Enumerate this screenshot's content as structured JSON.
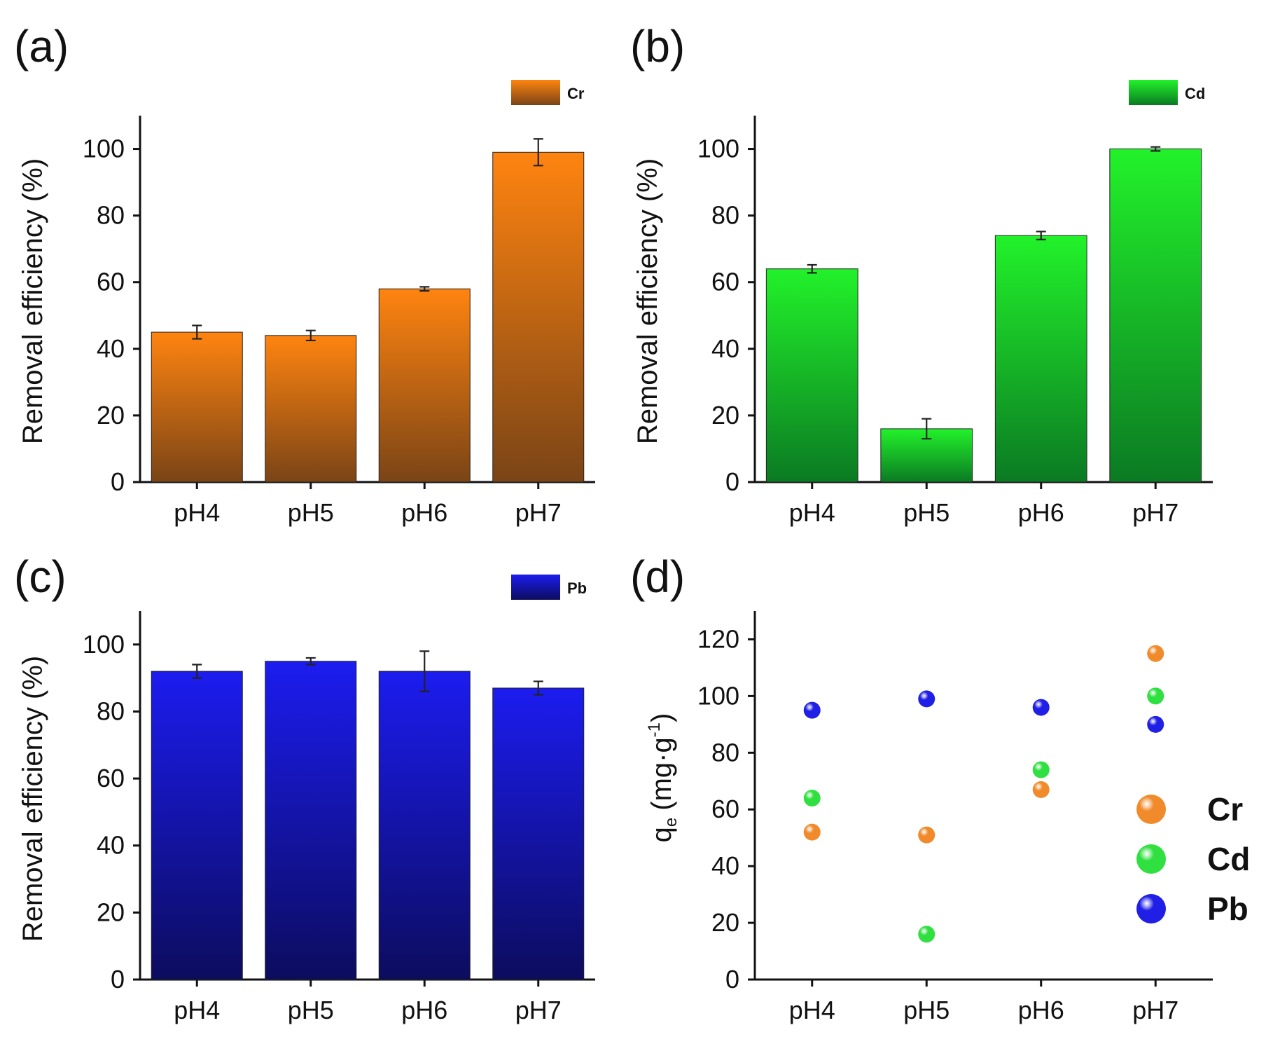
{
  "chart_data": [
    {
      "panel": "(a)",
      "type": "bar",
      "categories": [
        "pH4",
        "pH5",
        "pH6",
        "pH7"
      ],
      "series": [
        {
          "name": "Cr",
          "values": [
            45,
            44,
            58,
            99
          ],
          "errors": [
            2,
            1.5,
            0.6,
            4
          ]
        }
      ],
      "ylabel": "Removal efficiency (%)",
      "ylim": [
        0,
        110
      ],
      "yticks": [
        0,
        20,
        40,
        60,
        80,
        100
      ],
      "colors": {
        "top": "#ff8410",
        "bottom": "#7a4416"
      },
      "legend": "top-right"
    },
    {
      "panel": "(b)",
      "type": "bar",
      "categories": [
        "pH4",
        "pH5",
        "pH6",
        "pH7"
      ],
      "series": [
        {
          "name": "Cd",
          "values": [
            64,
            16,
            74,
            100
          ],
          "errors": [
            1.2,
            3,
            1.2,
            0.6
          ]
        }
      ],
      "ylabel": "Removal efficiency (%)",
      "ylim": [
        0,
        110
      ],
      "yticks": [
        0,
        20,
        40,
        60,
        80,
        100
      ],
      "colors": {
        "top": "#22f22a",
        "bottom": "#0b7a23"
      },
      "legend": "top-right"
    },
    {
      "panel": "(c)",
      "type": "bar",
      "categories": [
        "pH4",
        "pH5",
        "pH6",
        "pH7"
      ],
      "series": [
        {
          "name": "Pb",
          "values": [
            92,
            95,
            92,
            87
          ],
          "errors": [
            2,
            1,
            6,
            2
          ]
        }
      ],
      "ylabel": "Removal efficiency (%)",
      "ylim": [
        0,
        110
      ],
      "yticks": [
        0,
        20,
        40,
        60,
        80,
        100
      ],
      "colors": {
        "top": "#1c1cf0",
        "bottom": "#0c0c5e"
      },
      "legend": "top-right"
    },
    {
      "panel": "(d)",
      "type": "scatter",
      "categories": [
        "pH4",
        "pH5",
        "pH6",
        "pH7"
      ],
      "series": [
        {
          "name": "Cr",
          "values": [
            52,
            51,
            67,
            115
          ],
          "color": "#f08a2a"
        },
        {
          "name": "Cd",
          "values": [
            64,
            16,
            74,
            100
          ],
          "color": "#30e040"
        },
        {
          "name": "Pb",
          "values": [
            95,
            99,
            96,
            90
          ],
          "color": "#1f1fe6"
        }
      ],
      "ylabel_main": "q",
      "ylabel_sub": "e",
      "ylabel_unit": "(mg·g",
      "ylabel_sup": "-1",
      "ylabel_close": ")",
      "ylim": [
        0,
        130
      ],
      "yticks": [
        0,
        20,
        40,
        60,
        80,
        100,
        120
      ],
      "legend": "right"
    }
  ]
}
